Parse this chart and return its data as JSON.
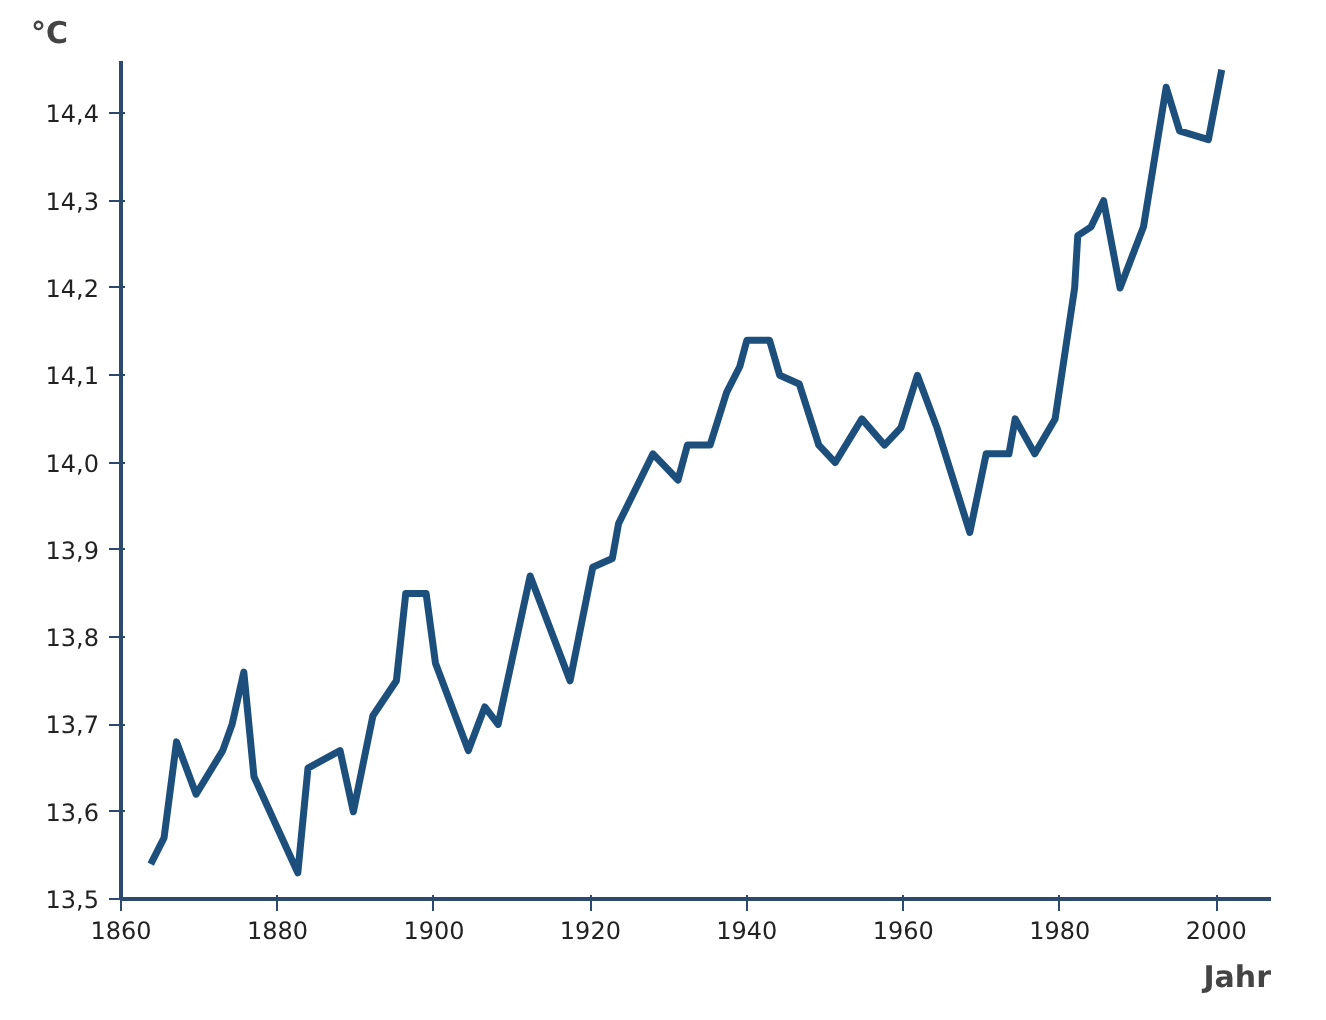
{
  "chart_data": {
    "type": "line",
    "ylabel": "°C",
    "xlabel": "Jahr",
    "xlim": [
      1860,
      2007
    ],
    "ylim": [
      13.5,
      14.46
    ],
    "xticks": [
      1860,
      1880,
      1900,
      1920,
      1940,
      1960,
      1980,
      2000
    ],
    "yticks": [
      {
        "value": 13.5,
        "label": "13,5"
      },
      {
        "value": 13.6,
        "label": "13,6"
      },
      {
        "value": 13.7,
        "label": "13,7"
      },
      {
        "value": 13.8,
        "label": "13,8"
      },
      {
        "value": 13.9,
        "label": "13,9"
      },
      {
        "value": 14.0,
        "label": "14,0"
      },
      {
        "value": 14.1,
        "label": "14,1"
      },
      {
        "value": 14.2,
        "label": "14,2"
      },
      {
        "value": 14.3,
        "label": "14,3"
      },
      {
        "value": 14.4,
        "label": "14,4"
      }
    ],
    "grid": false,
    "series": [
      {
        "color": "#1d4f7c",
        "x": [
          1863.8,
          1865.5,
          1867.1,
          1869.6,
          1873,
          1874.2,
          1875.7,
          1877,
          1882.6,
          1883.9,
          1888,
          1889.7,
          1892.2,
          1895.2,
          1896.4,
          1899,
          1900.2,
          1904.4,
          1906.5,
          1908.2,
          1912.3,
          1917.4,
          1920.3,
          1922.8,
          1923.6,
          1928,
          1931.2,
          1932.4,
          1935.3,
          1937.4,
          1939.1,
          1940,
          1942.9,
          1944.2,
          1946.7,
          1949.2,
          1951.3,
          1954.7,
          1957.6,
          1959.7,
          1961.8,
          1964.3,
          1968.5,
          1970.6,
          1973.5,
          1974.3,
          1976.8,
          1979.4,
          1981.9,
          1982.3,
          1984,
          1985.6,
          1987.7,
          1990.7,
          1993.6,
          1995.3,
          1999,
          2000.7
        ],
        "values": [
          13.54,
          13.57,
          13.68,
          13.62,
          13.67,
          13.7,
          13.76,
          13.64,
          13.53,
          13.65,
          13.67,
          13.6,
          13.71,
          13.75,
          13.85,
          13.85,
          13.77,
          13.67,
          13.72,
          13.7,
          13.87,
          13.75,
          13.88,
          13.89,
          13.93,
          14.01,
          13.98,
          14.02,
          14.02,
          14.08,
          14.11,
          14.14,
          14.14,
          14.1,
          14.09,
          14.02,
          14.0,
          14.05,
          14.02,
          14.04,
          14.1,
          14.04,
          13.92,
          14.01,
          14.01,
          14.05,
          14.01,
          14.05,
          14.2,
          14.26,
          14.27,
          14.3,
          14.2,
          14.27,
          14.43,
          14.38,
          14.37,
          14.45
        ]
      }
    ]
  }
}
